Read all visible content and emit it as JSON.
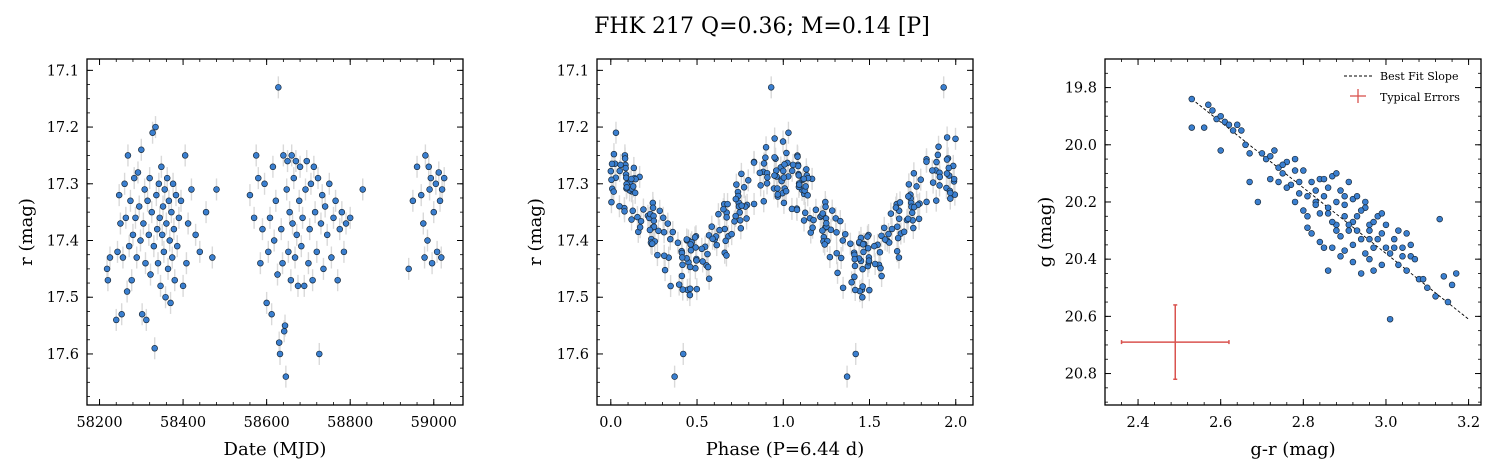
{
  "figure": {
    "title": "FHK 217  Q=0.36; M=0.14 [P]"
  },
  "colors": {
    "point_fill": "#3a7fd0",
    "point_edge": "#1a2a3a",
    "error_bar": "#d9d9d9",
    "typical_error": "#d9534f",
    "fit_line": "#000000"
  },
  "chart_data": [
    {
      "type": "scatter",
      "name": "light-curve",
      "xlabel": "Date (MJD)",
      "ylabel": "r (mag)",
      "xlim": [
        58170,
        59070
      ],
      "ylim": [
        17.69,
        17.08
      ],
      "y_inverted": true,
      "xticks": [
        58200,
        58400,
        58600,
        58800,
        59000
      ],
      "xtick_labels": [
        "58200",
        "58400",
        "58600",
        "58800",
        "59000"
      ],
      "yticks": [
        17.1,
        17.2,
        17.3,
        17.4,
        17.5,
        17.6
      ],
      "ytick_labels": [
        "17.1",
        "17.2",
        "17.3",
        "17.4",
        "17.5",
        "17.6"
      ],
      "points": [
        [
          58218,
          17.45
        ],
        [
          58220,
          17.47
        ],
        [
          58225,
          17.43
        ],
        [
          58240,
          17.54
        ],
        [
          58243,
          17.42
        ],
        [
          58247,
          17.32
        ],
        [
          58250,
          17.37
        ],
        [
          58253,
          17.53
        ],
        [
          58256,
          17.43
        ],
        [
          58260,
          17.3
        ],
        [
          58263,
          17.36
        ],
        [
          58266,
          17.49
        ],
        [
          58268,
          17.25
        ],
        [
          58271,
          17.41
        ],
        [
          58274,
          17.33
        ],
        [
          58277,
          17.47
        ],
        [
          58280,
          17.39
        ],
        [
          58283,
          17.29
        ],
        [
          58286,
          17.36
        ],
        [
          58289,
          17.43
        ],
        [
          58292,
          17.28
        ],
        [
          58295,
          17.34
        ],
        [
          58298,
          17.4
        ],
        [
          58300,
          17.24
        ],
        [
          58302,
          17.53
        ],
        [
          58305,
          17.37
        ],
        [
          58308,
          17.31
        ],
        [
          58310,
          17.44
        ],
        [
          58312,
          17.54
        ],
        [
          58315,
          17.33
        ],
        [
          58318,
          17.39
        ],
        [
          58320,
          17.29
        ],
        [
          58322,
          17.46
        ],
        [
          58325,
          17.35
        ],
        [
          58327,
          17.21
        ],
        [
          58330,
          17.41
        ],
        [
          58332,
          17.59
        ],
        [
          58334,
          17.2
        ],
        [
          58336,
          17.32
        ],
        [
          58338,
          17.38
        ],
        [
          58340,
          17.44
        ],
        [
          58342,
          17.3
        ],
        [
          58344,
          17.36
        ],
        [
          58346,
          17.48
        ],
        [
          58348,
          17.27
        ],
        [
          58350,
          17.39
        ],
        [
          58352,
          17.34
        ],
        [
          58354,
          17.42
        ],
        [
          58356,
          17.31
        ],
        [
          58358,
          17.5
        ],
        [
          58360,
          17.37
        ],
        [
          58362,
          17.29
        ],
        [
          58364,
          17.45
        ],
        [
          58366,
          17.33
        ],
        [
          58368,
          17.4
        ],
        [
          58370,
          17.51
        ],
        [
          58372,
          17.35
        ],
        [
          58374,
          17.43
        ],
        [
          58376,
          17.3
        ],
        [
          58378,
          17.38
        ],
        [
          58380,
          17.47
        ],
        [
          58383,
          17.32
        ],
        [
          58386,
          17.41
        ],
        [
          58390,
          17.36
        ],
        [
          58395,
          17.33
        ],
        [
          58400,
          17.48
        ],
        [
          58405,
          17.25
        ],
        [
          58408,
          17.44
        ],
        [
          58412,
          17.37
        ],
        [
          58420,
          17.31
        ],
        [
          58430,
          17.39
        ],
        [
          58440,
          17.42
        ],
        [
          58455,
          17.35
        ],
        [
          58470,
          17.43
        ],
        [
          58480,
          17.31
        ],
        [
          58560,
          17.32
        ],
        [
          58570,
          17.36
        ],
        [
          58575,
          17.25
        ],
        [
          58580,
          17.29
        ],
        [
          58585,
          17.44
        ],
        [
          58590,
          17.38
        ],
        [
          58595,
          17.3
        ],
        [
          58600,
          17.51
        ],
        [
          58604,
          17.42
        ],
        [
          58608,
          17.36
        ],
        [
          58612,
          17.53
        ],
        [
          58615,
          17.27
        ],
        [
          58618,
          17.4
        ],
        [
          58622,
          17.33
        ],
        [
          58626,
          17.46
        ],
        [
          58628,
          17.13
        ],
        [
          58630,
          17.58
        ],
        [
          58632,
          17.6
        ],
        [
          58635,
          17.38
        ],
        [
          58638,
          17.44
        ],
        [
          58640,
          17.25
        ],
        [
          58642,
          17.56
        ],
        [
          58644,
          17.55
        ],
        [
          58646,
          17.64
        ],
        [
          58648,
          17.31
        ],
        [
          58650,
          17.26
        ],
        [
          58652,
          17.42
        ],
        [
          58655,
          17.35
        ],
        [
          58658,
          17.47
        ],
        [
          58660,
          17.25
        ],
        [
          58662,
          17.37
        ],
        [
          58665,
          17.29
        ],
        [
          58668,
          17.43
        ],
        [
          58670,
          17.26
        ],
        [
          58672,
          17.39
        ],
        [
          58675,
          17.48
        ],
        [
          58678,
          17.33
        ],
        [
          58680,
          17.27
        ],
        [
          58683,
          17.41
        ],
        [
          58686,
          17.36
        ],
        [
          58690,
          17.48
        ],
        [
          58693,
          17.31
        ],
        [
          58696,
          17.26
        ],
        [
          58700,
          17.44
        ],
        [
          58703,
          17.38
        ],
        [
          58706,
          17.3
        ],
        [
          58710,
          17.47
        ],
        [
          58713,
          17.27
        ],
        [
          58716,
          17.35
        ],
        [
          58720,
          17.42
        ],
        [
          58723,
          17.29
        ],
        [
          58726,
          17.6
        ],
        [
          58730,
          17.37
        ],
        [
          58733,
          17.32
        ],
        [
          58736,
          17.45
        ],
        [
          58740,
          17.34
        ],
        [
          58745,
          17.39
        ],
        [
          58750,
          17.3
        ],
        [
          58755,
          17.43
        ],
        [
          58760,
          17.36
        ],
        [
          58765,
          17.33
        ],
        [
          58770,
          17.47
        ],
        [
          58775,
          17.38
        ],
        [
          58780,
          17.35
        ],
        [
          58785,
          17.42
        ],
        [
          58790,
          17.37
        ],
        [
          58800,
          17.36
        ],
        [
          58830,
          17.31
        ],
        [
          58940,
          17.45
        ],
        [
          58950,
          17.33
        ],
        [
          58960,
          17.27
        ],
        [
          58970,
          17.32
        ],
        [
          58975,
          17.37
        ],
        [
          58978,
          17.43
        ],
        [
          58980,
          17.25
        ],
        [
          58985,
          17.4
        ],
        [
          58988,
          17.27
        ],
        [
          58990,
          17.31
        ],
        [
          58993,
          17.29
        ],
        [
          58996,
          17.44
        ],
        [
          59000,
          17.35
        ],
        [
          59005,
          17.3
        ],
        [
          59008,
          17.42
        ],
        [
          59012,
          17.28
        ],
        [
          59015,
          17.33
        ],
        [
          59018,
          17.43
        ],
        [
          59020,
          17.31
        ],
        [
          59025,
          17.29
        ]
      ]
    },
    {
      "type": "scatter",
      "name": "phase-folded",
      "xlabel": "Phase (P=6.44 d)",
      "ylabel": "r (mag)",
      "xlim": [
        -0.08,
        2.1
      ],
      "ylim": [
        17.69,
        17.08
      ],
      "y_inverted": true,
      "xticks": [
        0.0,
        0.5,
        1.0,
        1.5,
        2.0
      ],
      "xtick_labels": [
        "0.0",
        "0.5",
        "1.0",
        "1.5",
        "2.0"
      ],
      "yticks": [
        17.1,
        17.2,
        17.3,
        17.4,
        17.5,
        17.6
      ],
      "ytick_labels": [
        "17.1",
        "17.2",
        "17.3",
        "17.4",
        "17.5",
        "17.6"
      ],
      "phase_curve": {
        "period": 1.0,
        "mean": 17.36,
        "amplitude": 0.085,
        "scatter": 0.055
      },
      "n_points": 170,
      "outliers": [
        [
          0.93,
          17.13
        ],
        [
          1.93,
          17.13
        ],
        [
          0.37,
          17.64
        ],
        [
          1.37,
          17.64
        ],
        [
          0.03,
          17.21
        ],
        [
          1.03,
          17.21
        ],
        [
          0.42,
          17.6
        ],
        [
          1.42,
          17.6
        ]
      ]
    },
    {
      "type": "scatter",
      "name": "color-magnitude",
      "xlabel": "g-r (mag)",
      "ylabel": "g (mag)",
      "xlim": [
        2.32,
        3.23
      ],
      "ylim": [
        20.91,
        19.7
      ],
      "y_inverted": true,
      "xticks": [
        2.4,
        2.6,
        2.8,
        3.0,
        3.2
      ],
      "xtick_labels": [
        "2.4",
        "2.6",
        "2.8",
        "3.0",
        "3.2"
      ],
      "yticks": [
        19.8,
        20.0,
        20.2,
        20.4,
        20.6,
        20.8
      ],
      "ytick_labels": [
        "19.8",
        "20.0",
        "20.2",
        "20.4",
        "20.6",
        "20.8"
      ],
      "fit_line": {
        "x": [
          2.53,
          3.2
        ],
        "y": [
          19.84,
          20.61
        ]
      },
      "typical_error": {
        "x": 2.49,
        "y": 20.69,
        "xerr_minus": 0.13,
        "xerr_plus": 0.13,
        "yerr": 0.13
      },
      "legend": {
        "placement": "top-right",
        "entries": [
          "Best Fit Slope",
          "Typical Errors"
        ]
      },
      "points": [
        [
          2.53,
          19.84
        ],
        [
          2.53,
          19.94
        ],
        [
          2.56,
          19.94
        ],
        [
          2.57,
          19.86
        ],
        [
          2.58,
          19.88
        ],
        [
          2.59,
          19.91
        ],
        [
          2.6,
          19.9
        ],
        [
          2.61,
          19.92
        ],
        [
          2.62,
          19.93
        ],
        [
          2.63,
          19.95
        ],
        [
          2.64,
          19.93
        ],
        [
          2.65,
          19.95
        ],
        [
          2.6,
          20.02
        ],
        [
          2.66,
          20.0
        ],
        [
          2.67,
          20.13
        ],
        [
          2.67,
          20.03
        ],
        [
          2.69,
          20.2
        ],
        [
          2.7,
          20.03
        ],
        [
          2.71,
          20.05
        ],
        [
          2.72,
          20.12
        ],
        [
          2.73,
          20.02
        ],
        [
          2.74,
          20.08
        ],
        [
          2.75,
          20.1
        ],
        [
          2.76,
          20.06
        ],
        [
          2.77,
          20.14
        ],
        [
          2.78,
          20.05
        ],
        [
          2.79,
          20.17
        ],
        [
          2.8,
          20.09
        ],
        [
          2.81,
          20.25
        ],
        [
          2.82,
          20.13
        ],
        [
          2.83,
          20.2
        ],
        [
          2.84,
          20.12
        ],
        [
          2.85,
          20.18
        ],
        [
          2.86,
          20.24
        ],
        [
          2.87,
          20.11
        ],
        [
          2.88,
          20.28
        ],
        [
          2.89,
          20.16
        ],
        [
          2.9,
          20.21
        ],
        [
          2.91,
          20.3
        ],
        [
          2.92,
          20.19
        ],
        [
          2.93,
          20.25
        ],
        [
          2.94,
          20.33
        ],
        [
          2.95,
          20.22
        ],
        [
          2.96,
          20.28
        ],
        [
          2.97,
          20.36
        ],
        [
          2.98,
          20.25
        ],
        [
          2.99,
          20.31
        ],
        [
          3.0,
          20.28
        ],
        [
          3.01,
          20.38
        ],
        [
          3.02,
          20.33
        ],
        [
          3.03,
          20.42
        ],
        [
          3.04,
          20.36
        ],
        [
          3.05,
          20.44
        ],
        [
          3.06,
          20.39
        ],
        [
          3.08,
          20.47
        ],
        [
          3.1,
          20.5
        ],
        [
          3.12,
          20.53
        ],
        [
          3.13,
          20.26
        ],
        [
          3.14,
          20.46
        ],
        [
          3.15,
          20.55
        ],
        [
          3.16,
          20.49
        ],
        [
          3.17,
          20.45
        ],
        [
          3.01,
          20.61
        ],
        [
          2.84,
          20.24
        ],
        [
          2.86,
          20.22
        ],
        [
          2.88,
          20.2
        ],
        [
          2.9,
          20.25
        ],
        [
          2.92,
          20.27
        ],
        [
          2.94,
          20.23
        ],
        [
          2.96,
          20.3
        ],
        [
          2.82,
          20.31
        ],
        [
          2.84,
          20.34
        ],
        [
          2.87,
          20.36
        ],
        [
          2.9,
          20.37
        ],
        [
          2.93,
          20.3
        ],
        [
          2.96,
          20.4
        ],
        [
          2.99,
          20.42
        ],
        [
          2.8,
          20.23
        ],
        [
          2.78,
          20.2
        ],
        [
          2.76,
          20.15
        ],
        [
          2.74,
          20.13
        ],
        [
          2.86,
          20.44
        ],
        [
          2.89,
          20.32
        ],
        [
          2.92,
          20.35
        ],
        [
          2.95,
          20.38
        ],
        [
          2.98,
          20.33
        ],
        [
          3.02,
          20.36
        ],
        [
          3.05,
          20.31
        ],
        [
          2.88,
          20.1
        ],
        [
          2.91,
          20.13
        ],
        [
          2.85,
          20.12
        ],
        [
          2.83,
          20.16
        ],
        [
          2.81,
          20.18
        ],
        [
          2.79,
          20.13
        ],
        [
          2.97,
          20.27
        ],
        [
          2.99,
          20.24
        ],
        [
          3.03,
          20.3
        ],
        [
          3.06,
          20.35
        ],
        [
          2.93,
          20.18
        ],
        [
          2.95,
          20.2
        ],
        [
          2.85,
          20.36
        ],
        [
          2.88,
          20.3
        ],
        [
          2.91,
          20.28
        ],
        [
          2.94,
          20.45
        ],
        [
          3.07,
          20.4
        ],
        [
          3.09,
          20.47
        ],
        [
          2.81,
          20.29
        ],
        [
          2.87,
          20.27
        ],
        [
          2.9,
          20.18
        ],
        [
          2.96,
          20.33
        ],
        [
          2.72,
          20.04
        ],
        [
          2.75,
          20.07
        ],
        [
          2.78,
          20.09
        ],
        [
          2.83,
          20.21
        ],
        [
          2.86,
          20.15
        ],
        [
          3.0,
          20.36
        ],
        [
          3.04,
          20.39
        ],
        [
          2.92,
          20.41
        ],
        [
          2.97,
          20.44
        ],
        [
          2.89,
          20.39
        ]
      ]
    }
  ]
}
